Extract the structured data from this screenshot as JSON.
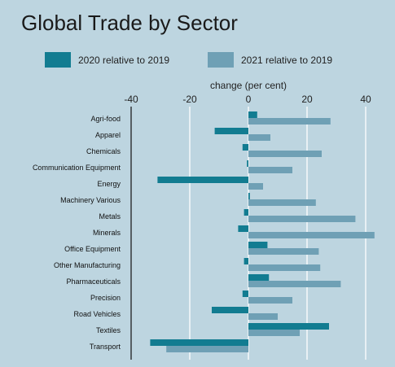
{
  "chart_data": {
    "type": "bar",
    "orientation": "horizontal",
    "title": "Global Trade by Sector",
    "xlabel": "change (per cent)",
    "xlim": [
      -42,
      44
    ],
    "xticks": [
      -40,
      -20,
      0,
      20,
      40
    ],
    "grid": true,
    "legend_position": "top",
    "categories": [
      "Agri-food",
      "Apparel",
      "Chemicals",
      "Communication Equipment",
      "Energy",
      "Machinery Various",
      "Metals",
      "Minerals",
      "Office Equipment",
      "Other Manufacturing",
      "Pharmaceuticals",
      "Precision",
      "Road Vehicles",
      "Textiles",
      "Transport"
    ],
    "series": [
      {
        "name": "2020 relative to 2019",
        "color": "#127c91",
        "values": [
          3,
          -11.5,
          -2,
          -0.5,
          -31,
          0.5,
          -1.5,
          -3.5,
          6.5,
          -1.5,
          7,
          -2,
          -12.5,
          27.5,
          -33.5
        ]
      },
      {
        "name": "2021 relative to 2019",
        "color": "#6fa0b5",
        "values": [
          28,
          7.5,
          25,
          15,
          5,
          23,
          36.5,
          43,
          24,
          24.5,
          31.5,
          15,
          10,
          17.5,
          -28
        ]
      }
    ]
  }
}
